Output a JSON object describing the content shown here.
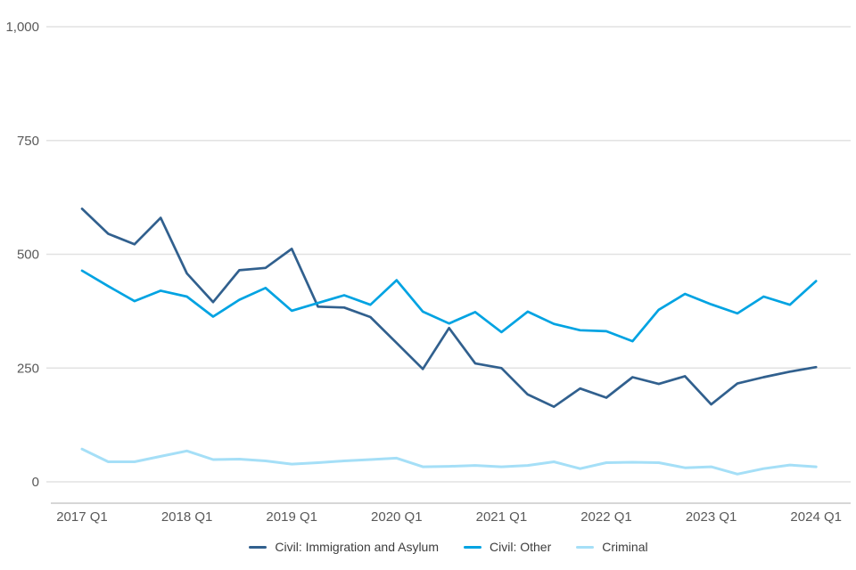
{
  "chart_data": {
    "type": "line",
    "title": "",
    "xlabel": "",
    "ylabel": "",
    "ylim": [
      0,
      1000
    ],
    "grid": true,
    "legend_position": "bottom",
    "y_ticks": [
      0,
      250,
      500,
      750,
      1000
    ],
    "y_tick_labels": [
      "0",
      "250",
      "500",
      "750",
      "1,000"
    ],
    "x_tick_labels": [
      "2017 Q1",
      "2018 Q1",
      "2019 Q1",
      "2020 Q1",
      "2021 Q1",
      "2022 Q1",
      "2023 Q1",
      "2024 Q1"
    ],
    "x": [
      "2017 Q1",
      "2017 Q2",
      "2017 Q3",
      "2017 Q4",
      "2018 Q1",
      "2018 Q2",
      "2018 Q3",
      "2018 Q4",
      "2019 Q1",
      "2019 Q2",
      "2019 Q3",
      "2019 Q4",
      "2020 Q1",
      "2020 Q2",
      "2020 Q3",
      "2020 Q4",
      "2021 Q1",
      "2021 Q2",
      "2021 Q3",
      "2021 Q4",
      "2022 Q1",
      "2022 Q2",
      "2022 Q3",
      "2022 Q4",
      "2023 Q1",
      "2023 Q2",
      "2023 Q3",
      "2023 Q4",
      "2024 Q1"
    ],
    "series": [
      {
        "name": "Civil: Immigration and Asylum",
        "color": "#31608E",
        "values": [
          600,
          545,
          522,
          580,
          458,
          395,
          465,
          470,
          512,
          385,
          383,
          362,
          305,
          248,
          338,
          260,
          250,
          192,
          165,
          205,
          185,
          230,
          215,
          232,
          170,
          216,
          230,
          242,
          252
        ]
      },
      {
        "name": "Civil: Other",
        "color": "#00A3E2",
        "values": [
          464,
          430,
          397,
          420,
          407,
          363,
          400,
          426,
          376,
          393,
          410,
          389,
          443,
          374,
          348,
          373,
          329,
          374,
          347,
          333,
          331,
          309,
          378,
          413,
          390,
          370,
          407,
          389,
          441
        ]
      },
      {
        "name": "Criminal",
        "color": "#A5DFF7",
        "values": [
          72,
          44,
          44,
          56,
          68,
          49,
          50,
          46,
          39,
          42,
          46,
          49,
          52,
          33,
          34,
          36,
          33,
          36,
          44,
          29,
          42,
          43,
          42,
          31,
          33,
          17,
          29,
          37,
          33
        ]
      }
    ]
  },
  "colors": {
    "gridline": "#e2e2e2",
    "axis_line": "#c9c9c9",
    "tick_label": "#595959",
    "legend_label": "#3d3d3d",
    "background": "#ffffff"
  }
}
